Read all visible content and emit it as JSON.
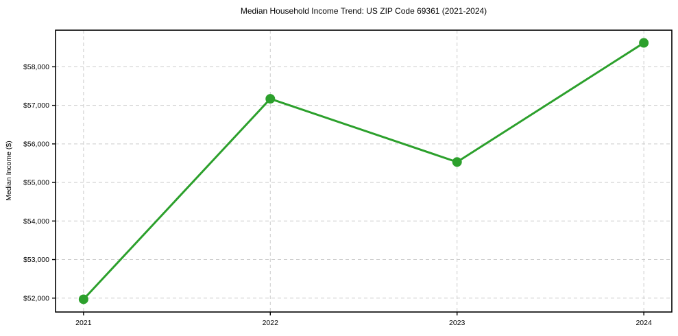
{
  "chart_data": {
    "type": "line",
    "title": "Median Household Income Trend: US ZIP Code 69361 (2021-2024)",
    "xlabel": "",
    "ylabel": "Median Income ($)",
    "categories": [
      "2021",
      "2022",
      "2023",
      "2024"
    ],
    "series": [
      {
        "name": "Median Household Income",
        "values": [
          51970,
          57170,
          55530,
          58620
        ]
      }
    ],
    "y_ticks": [
      52000,
      53000,
      54000,
      55000,
      56000,
      57000,
      58000
    ],
    "y_tick_labels": [
      "$52,000",
      "$53,000",
      "$54,000",
      "$55,000",
      "$56,000",
      "$57,000",
      "$58,000"
    ],
    "ylim": [
      51640,
      58950
    ],
    "xlim": [
      -0.15,
      3.15
    ],
    "grid": true,
    "grid_style": "dashed",
    "legend_position": "none",
    "colors": {
      "line": "#2ca02c",
      "marker": "#2ca02c",
      "grid": "#cccccc",
      "axis": "#000000",
      "text": "#000000",
      "background": "#ffffff"
    }
  }
}
